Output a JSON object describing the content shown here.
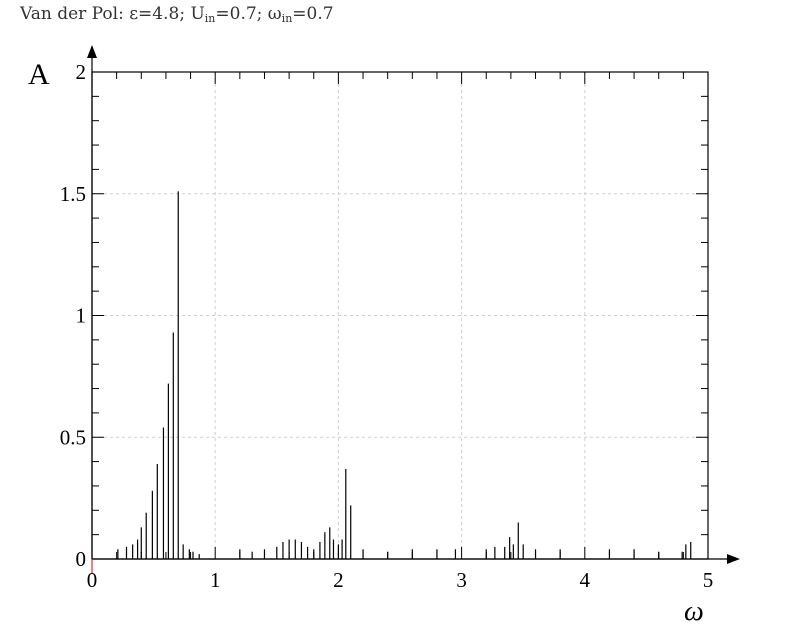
{
  "header": {
    "title_main": "Van der Pol: ε=4.8; U",
    "sub1": "in",
    "mid": "=0.7; ω",
    "sub2": "in",
    "tail": "=0.7"
  },
  "chart_data": {
    "type": "bar",
    "ylabel": "A",
    "xlabel": "ω",
    "xlim": [
      0,
      5
    ],
    "ylim": [
      0,
      2
    ],
    "xticks": [
      "0",
      "1",
      "2",
      "3",
      "4",
      "5"
    ],
    "yticks": [
      "0",
      "0.5",
      "1",
      "1.5",
      "2"
    ],
    "grid": true,
    "x": [
      0.21,
      0.28,
      0.33,
      0.37,
      0.4,
      0.44,
      0.49,
      0.53,
      0.58,
      0.62,
      0.66,
      0.7,
      0.74,
      0.79,
      0.82,
      0.87,
      1.2,
      1.3,
      1.4,
      1.5,
      1.55,
      1.6,
      1.65,
      1.7,
      1.75,
      1.8,
      1.85,
      1.89,
      1.93,
      1.96,
      2.0,
      2.03,
      2.06,
      2.1,
      2.2,
      2.4,
      2.6,
      2.8,
      2.95,
      3.2,
      3.27,
      3.35,
      3.39,
      3.42,
      3.46,
      3.5,
      3.6,
      3.8,
      4.2,
      4.4,
      4.6,
      4.79,
      4.82,
      4.86
    ],
    "values": [
      0.04,
      0.05,
      0.06,
      0.08,
      0.13,
      0.19,
      0.28,
      0.39,
      0.54,
      0.72,
      0.93,
      1.51,
      0.06,
      0.04,
      0.03,
      0.02,
      0.04,
      0.03,
      0.04,
      0.05,
      0.07,
      0.08,
      0.08,
      0.07,
      0.05,
      0.04,
      0.07,
      0.11,
      0.13,
      0.08,
      0.06,
      0.08,
      0.37,
      0.22,
      0.04,
      0.03,
      0.04,
      0.04,
      0.04,
      0.04,
      0.05,
      0.05,
      0.09,
      0.06,
      0.15,
      0.06,
      0.04,
      0.04,
      0.04,
      0.04,
      0.03,
      0.03,
      0.06,
      0.07
    ]
  }
}
